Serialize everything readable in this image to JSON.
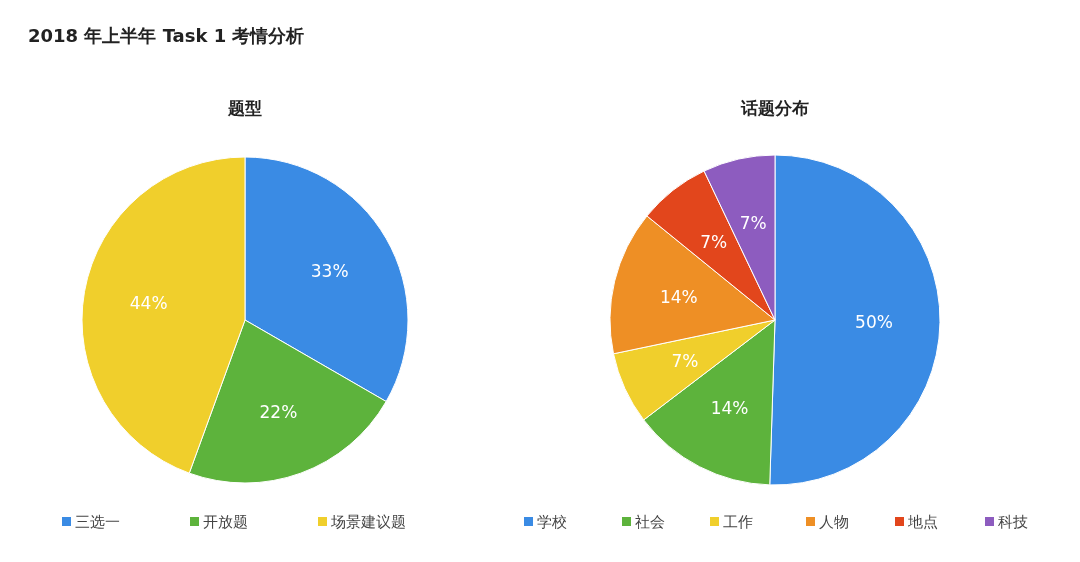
{
  "chart_data": [
    {
      "type": "pie",
      "title": "题型",
      "annotations": [
        "2018 年上半年 Task 1 考情分析"
      ],
      "categories": [
        "三选一",
        "开放题",
        "场景建议题"
      ],
      "values": [
        33,
        22,
        44
      ],
      "colors": [
        "#3a8be4",
        "#5db33c",
        "#f0cf2c"
      ],
      "value_labels": [
        "33%",
        "22%",
        "44%"
      ],
      "legend": "bottom"
    },
    {
      "type": "pie",
      "title": "话题分布",
      "categories": [
        "学校",
        "社会",
        "工作",
        "人物",
        "地点",
        "科技"
      ],
      "values": [
        50,
        14,
        7,
        14,
        7,
        7
      ],
      "colors": [
        "#3a8be4",
        "#5db33c",
        "#f0cf2c",
        "#ee8f25",
        "#e2461c",
        "#8d5cbf"
      ],
      "value_labels": [
        "50%",
        "14%",
        "7%",
        "14%",
        "7%",
        "7%"
      ],
      "legend": "bottom"
    }
  ]
}
